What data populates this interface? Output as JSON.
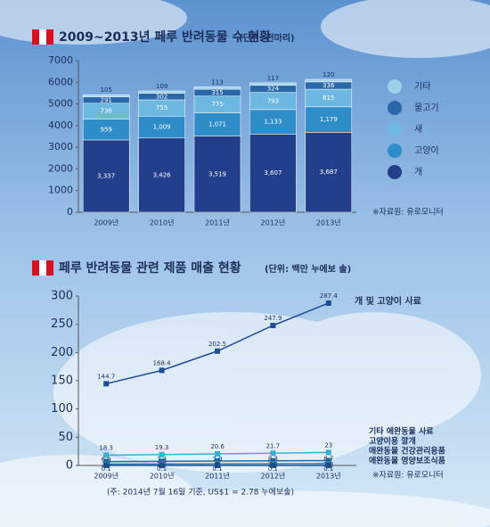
{
  "chart_data": [
    {
      "type": "stacked-bar",
      "title": "2009~2013년 페루 반려동물 수 현황",
      "subtitle": "(단위: 천마리)",
      "categories": [
        "2009년",
        "2010년",
        "2011년",
        "2012년",
        "2013년"
      ],
      "series": [
        {
          "name": "개",
          "color": "#233f8c",
          "values": [
            3337,
            3426,
            3519,
            3607,
            3687
          ],
          "value_labels": [
            "3,337",
            "3,426",
            "3,519",
            "3,607",
            "3,687"
          ]
        },
        {
          "name": "고양이",
          "color": "#2e8dc8",
          "values": [
            959,
            1009,
            1071,
            1133,
            1179
          ],
          "value_labels": [
            "959",
            "1,009",
            "1,071",
            "1,133",
            "1,179"
          ]
        },
        {
          "name": "새",
          "color": "#6cb8e0",
          "values": [
            736,
            755,
            775,
            793,
            815
          ]
        },
        {
          "name": "물고기",
          "color": "#2a67a8",
          "values": [
            291,
            302,
            315,
            324,
            336
          ]
        },
        {
          "name": "기타",
          "color": "#9fd0ea",
          "values": [
            105,
            109,
            113,
            117,
            120
          ]
        }
      ],
      "ylim": [
        0,
        7000
      ],
      "yticks": [
        0,
        1000,
        2000,
        3000,
        4000,
        5000,
        6000,
        7000
      ],
      "source": "※자료원: 유로모니터"
    },
    {
      "type": "line",
      "title": "페루 반려동물 관련 제품 매출 현황",
      "subtitle": "(단위: 백만 누에보 솔)",
      "categories": [
        "2009년",
        "2010년",
        "2011년",
        "2012년",
        "2013년"
      ],
      "series": [
        {
          "name": "개 및 고양이 사료",
          "color": "#1f4e95",
          "values": [
            144.7,
            168.4,
            202.5,
            247.9,
            287.4
          ]
        },
        {
          "name": "기타 애완동물 사료",
          "color": "#3ab0d0",
          "values": [
            18.3,
            19.3,
            20.6,
            21.7,
            23
          ]
        },
        {
          "name": "고양이용 깔개",
          "color": "#1f6aa0",
          "values": [
            6.9,
            7.4,
            7.9,
            8.3,
            8.7
          ]
        },
        {
          "name": "애완동물 건강관리용품",
          "color": "#2c82c0",
          "values": [
            2.6,
            2.8,
            3.0,
            3.2,
            3.3
          ]
        },
        {
          "name": "애완동물 영양보조식품",
          "color": "#1a4f8a",
          "values": [
            0.1,
            0.1,
            0.1,
            0.1,
            0.1
          ]
        }
      ],
      "ylim": [
        0,
        300
      ],
      "yticks": [
        0,
        50,
        100,
        150,
        200,
        250,
        300
      ],
      "note": "(주: 2014년 7월 16일 기준, US$1 = 2.78 누에보솔)",
      "source": "※자료원: 유로모니터"
    }
  ]
}
